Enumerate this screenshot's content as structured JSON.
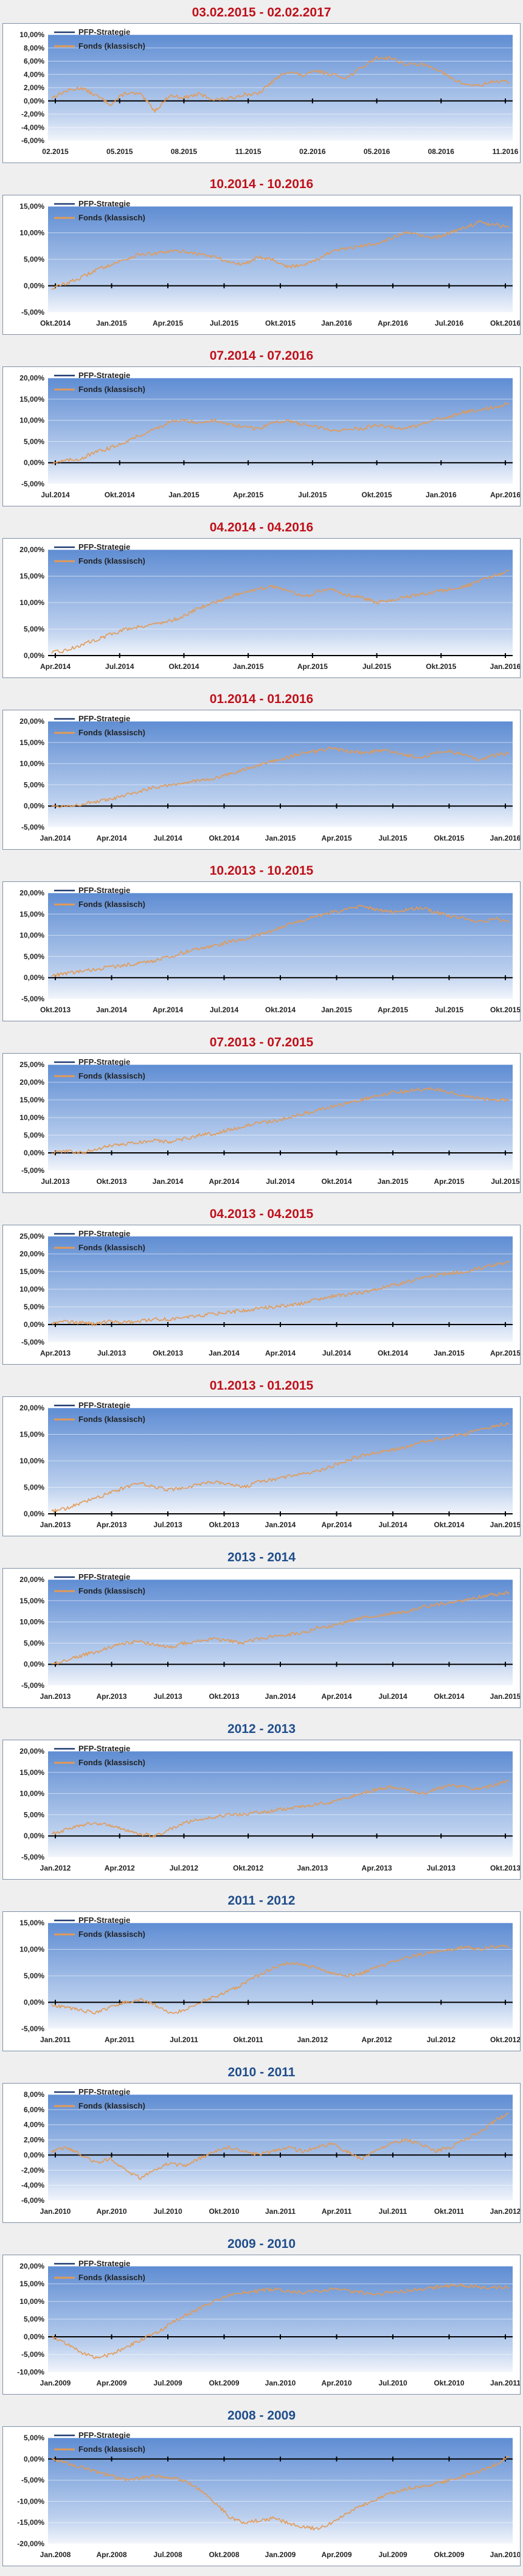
{
  "colors": {
    "title_red": "#c0101a",
    "title_blue": "#1f4e8c",
    "line_series": "#e39a55",
    "legend_strategy": "#1f3b70",
    "plot_top": "#5f8dd3",
    "plot_bottom": "#f2f5fb"
  },
  "chart_data": [
    {
      "type": "line",
      "title": "03.02.2015 - 02.02.2017",
      "title_color": "red",
      "legend": [
        "PFP-Strategie",
        "Fonds (klassisch)"
      ],
      "yticks": [
        "10,00%",
        "8,00%",
        "6,00%",
        "4,00%",
        "2,00%",
        "0,00%",
        "-2,00%",
        "-4,00%",
        "-6,00%"
      ],
      "ylim": [
        -6,
        10
      ],
      "xticks": [
        "02.2015",
        "05.2015",
        "08.2015",
        "11.2015",
        "02.2016",
        "05.2016",
        "08.2016",
        "11.2016"
      ],
      "series": [
        {
          "name": "PFP-Strategie",
          "values": []
        },
        {
          "name": "Fonds (klassisch)",
          "values": [
            0.5,
            1.5,
            2.0,
            0.8,
            -0.5,
            1.2,
            1.0,
            -1.5,
            0.8,
            0.5,
            1.0,
            0.2,
            0.3,
            1.0,
            1.0,
            3.0,
            4.5,
            3.8,
            4.5,
            4.0,
            3.5,
            5.0,
            6.5,
            6.5,
            5.5,
            5.5,
            5.0,
            3.5,
            2.5,
            2.3,
            3.0,
            2.8
          ]
        }
      ]
    },
    {
      "type": "line",
      "title": "10.2014 - 10.2016",
      "title_color": "red",
      "legend": [
        "PFP-Strategie",
        "Fonds (klassisch)"
      ],
      "yticks": [
        "15,00%",
        "10,00%",
        "5,00%",
        "0,00%",
        "-5,00%"
      ],
      "ylim": [
        -5,
        15
      ],
      "xticks": [
        "Okt.2014",
        "Jan.2015",
        "Apr.2015",
        "Jul.2015",
        "Okt.2015",
        "Jan.2016",
        "Apr.2016",
        "Jul.2016",
        "Okt.2016"
      ],
      "series": [
        {
          "name": "PFP-Strategie",
          "values": []
        },
        {
          "name": "Fonds (klassisch)",
          "values": [
            -0.5,
            0.5,
            1.5,
            3.0,
            4.0,
            5.0,
            6.0,
            6.0,
            6.5,
            6.5,
            6.0,
            5.5,
            4.5,
            4.0,
            5.5,
            5.0,
            3.5,
            4.0,
            5.0,
            6.5,
            7.0,
            7.5,
            8.0,
            9.0,
            10.0,
            9.5,
            9.0,
            10.0,
            11.0,
            12.0,
            11.5,
            11.0
          ]
        }
      ]
    },
    {
      "type": "line",
      "title": "07.2014 - 07.2016",
      "title_color": "red",
      "legend": [
        "PFP-Strategie",
        "Fonds (klassisch)"
      ],
      "yticks": [
        "20,00%",
        "15,00%",
        "10,00%",
        "5,00%",
        "0,00%",
        "-5,00%"
      ],
      "ylim": [
        -5,
        20
      ],
      "xticks": [
        "Jul.2014",
        "Okt.2014",
        "Jan.2015",
        "Apr.2015",
        "Jul.2015",
        "Okt.2015",
        "Jan.2016",
        "Apr.2016"
      ],
      "series": [
        {
          "name": "PFP-Strategie",
          "values": []
        },
        {
          "name": "Fonds (klassisch)",
          "values": [
            0.0,
            0.5,
            1.0,
            2.5,
            3.5,
            5.0,
            6.5,
            8.0,
            9.5,
            10.0,
            9.5,
            10.0,
            9.0,
            8.5,
            8.0,
            9.5,
            10.0,
            9.0,
            8.5,
            7.5,
            8.0,
            8.0,
            9.0,
            8.5,
            8.0,
            9.0,
            10.0,
            11.0,
            12.0,
            12.5,
            13.0,
            14.0
          ]
        }
      ]
    },
    {
      "type": "line",
      "title": "04.2014 - 04.2016",
      "title_color": "red",
      "legend": [
        "PFP-Strategie",
        "Fonds (klassisch)"
      ],
      "yticks": [
        "20,00%",
        "15,00%",
        "10,00%",
        "5,00%",
        "0,00%"
      ],
      "ylim": [
        0,
        20
      ],
      "xticks": [
        "Apr.2014",
        "Jul.2014",
        "Okt.2014",
        "Jan.2015",
        "Apr.2015",
        "Jul.2015",
        "Okt.2015",
        "Jan.2016"
      ],
      "series": [
        {
          "name": "PFP-Strategie",
          "values": []
        },
        {
          "name": "Fonds (klassisch)",
          "values": [
            0.5,
            1.0,
            2.0,
            3.0,
            4.0,
            5.0,
            5.5,
            6.0,
            6.5,
            7.5,
            9.0,
            10.0,
            11.0,
            12.0,
            12.5,
            13.0,
            12.5,
            11.0,
            12.0,
            12.5,
            11.5,
            11.0,
            10.0,
            10.5,
            11.0,
            11.5,
            12.0,
            12.5,
            13.0,
            14.0,
            15.0,
            16.0
          ]
        }
      ]
    },
    {
      "type": "line",
      "title": "01.2014 - 01.2016",
      "title_color": "red",
      "legend": [
        "PFP-Strategie",
        "Fonds (klassisch)"
      ],
      "yticks": [
        "20,00%",
        "15,00%",
        "10,00%",
        "5,00%",
        "0,00%",
        "-5,00%"
      ],
      "ylim": [
        -5,
        20
      ],
      "xticks": [
        "Jan.2014",
        "Apr.2014",
        "Jul.2014",
        "Okt.2014",
        "Jan.2015",
        "Apr.2015",
        "Jul.2015",
        "Okt.2015",
        "Jan.2016"
      ],
      "series": [
        {
          "name": "PFP-Strategie",
          "values": []
        },
        {
          "name": "Fonds (klassisch)",
          "values": [
            0.0,
            0.0,
            0.5,
            1.0,
            1.5,
            2.5,
            3.5,
            4.5,
            5.0,
            5.5,
            6.0,
            6.5,
            7.5,
            8.5,
            9.5,
            10.5,
            11.5,
            12.5,
            13.0,
            13.5,
            13.0,
            12.5,
            13.0,
            13.0,
            12.0,
            11.5,
            12.5,
            13.0,
            12.0,
            11.0,
            12.0,
            12.5
          ]
        }
      ]
    },
    {
      "type": "line",
      "title": "10.2013 - 10.2015",
      "title_color": "red",
      "legend": [
        "PFP-Strategie",
        "Fonds (klassisch)"
      ],
      "yticks": [
        "20,00%",
        "15,00%",
        "10,00%",
        "5,00%",
        "0,00%",
        "-5,00%"
      ],
      "ylim": [
        -5,
        20
      ],
      "xticks": [
        "Okt.2013",
        "Jan.2014",
        "Apr.2014",
        "Jul.2014",
        "Okt.2014",
        "Jan.2015",
        "Apr.2015",
        "Jul.2015",
        "Okt.2015"
      ],
      "series": [
        {
          "name": "PFP-Strategie",
          "values": []
        },
        {
          "name": "Fonds (klassisch)",
          "values": [
            0.5,
            1.0,
            1.5,
            2.0,
            2.5,
            3.0,
            3.5,
            4.0,
            5.0,
            6.0,
            7.0,
            7.5,
            8.5,
            9.0,
            10.0,
            11.0,
            12.5,
            13.5,
            14.5,
            15.5,
            16.0,
            17.0,
            16.0,
            15.5,
            16.0,
            16.5,
            15.5,
            14.5,
            14.0,
            13.0,
            14.0,
            13.0
          ]
        }
      ]
    },
    {
      "type": "line",
      "title": "07.2013 - 07.2015",
      "title_color": "red",
      "legend": [
        "PFP-Strategie",
        "Fonds (klassisch)"
      ],
      "yticks": [
        "25,00%",
        "20,00%",
        "15,00%",
        "10,00%",
        "5,00%",
        "0,00%",
        "-5,00%"
      ],
      "ylim": [
        -5,
        25
      ],
      "xticks": [
        "Jul.2013",
        "Okt.2013",
        "Jan.2014",
        "Apr.2014",
        "Jul.2014",
        "Okt.2014",
        "Jan.2015",
        "Apr.2015",
        "Jul.2015"
      ],
      "series": [
        {
          "name": "PFP-Strategie",
          "values": []
        },
        {
          "name": "Fonds (klassisch)",
          "values": [
            0.0,
            0.5,
            0.0,
            1.0,
            2.0,
            2.5,
            3.0,
            3.5,
            3.0,
            4.0,
            5.0,
            5.5,
            6.5,
            7.5,
            8.5,
            9.0,
            10.0,
            11.0,
            12.0,
            13.0,
            14.0,
            15.0,
            16.0,
            17.0,
            17.5,
            18.0,
            18.0,
            17.0,
            16.0,
            15.5,
            15.0,
            15.0
          ]
        }
      ]
    },
    {
      "type": "line",
      "title": "04.2013 - 04.2015",
      "title_color": "red",
      "legend": [
        "PFP-Strategie",
        "Fonds (klassisch)"
      ],
      "yticks": [
        "25,00%",
        "20,00%",
        "15,00%",
        "10,00%",
        "5,00%",
        "0,00%",
        "-5,00%"
      ],
      "ylim": [
        -5,
        25
      ],
      "xticks": [
        "Apr.2013",
        "Jul.2013",
        "Okt.2013",
        "Jan.2014",
        "Apr.2014",
        "Jul.2014",
        "Okt.2014",
        "Jan.2015",
        "Apr.2015"
      ],
      "series": [
        {
          "name": "PFP-Strategie",
          "values": []
        },
        {
          "name": "Fonds (klassisch)",
          "values": [
            0.5,
            1.0,
            0.5,
            0.0,
            1.0,
            0.5,
            1.0,
            1.5,
            1.5,
            2.0,
            2.5,
            3.0,
            3.5,
            4.0,
            4.5,
            5.0,
            5.5,
            6.0,
            7.0,
            8.0,
            8.5,
            9.0,
            10.0,
            11.0,
            12.0,
            13.0,
            14.0,
            14.5,
            15.0,
            16.0,
            17.0,
            17.5
          ]
        }
      ]
    },
    {
      "type": "line",
      "title": "01.2013 - 01.2015",
      "title_color": "red",
      "legend": [
        "PFP-Strategie",
        "Fonds (klassisch)"
      ],
      "yticks": [
        "20,00%",
        "15,00%",
        "10,00%",
        "5,00%",
        "0,00%"
      ],
      "ylim": [
        0,
        20
      ],
      "xticks": [
        "Jan.2013",
        "Apr.2013",
        "Jul.2013",
        "Okt.2013",
        "Jan.2014",
        "Apr.2014",
        "Jul.2014",
        "Okt.2014",
        "Jan.2015"
      ],
      "series": [
        {
          "name": "PFP-Strategie",
          "values": []
        },
        {
          "name": "Fonds (klassisch)",
          "values": [
            0.5,
            1.0,
            2.0,
            3.0,
            4.0,
            5.0,
            6.0,
            5.0,
            4.5,
            5.0,
            5.5,
            6.0,
            5.5,
            5.0,
            6.0,
            6.5,
            7.0,
            7.5,
            8.0,
            9.0,
            10.0,
            11.0,
            11.5,
            12.0,
            12.5,
            13.5,
            14.0,
            14.5,
            15.0,
            16.0,
            16.5,
            17.0
          ]
        }
      ]
    },
    {
      "type": "line",
      "title": "2013 - 2014",
      "title_color": "blue",
      "legend": [
        "PFP-Strategie",
        "Fonds (klassisch)"
      ],
      "yticks": [
        "20,00%",
        "15,00%",
        "10,00%",
        "5,00%",
        "0,00%",
        "-5,00%"
      ],
      "ylim": [
        -5,
        20
      ],
      "xticks": [
        "Jan.2013",
        "Apr.2013",
        "Jul.2013",
        "Okt.2013",
        "Jan.2014",
        "Apr.2014",
        "Jul.2014",
        "Okt.2014",
        "Jan.2015"
      ],
      "series": [
        {
          "name": "PFP-Strategie",
          "values": []
        },
        {
          "name": "Fonds (klassisch)",
          "values": [
            0.0,
            1.0,
            2.0,
            3.0,
            4.0,
            5.0,
            5.5,
            4.5,
            4.0,
            5.0,
            5.5,
            6.0,
            5.5,
            5.0,
            6.0,
            6.5,
            7.0,
            7.5,
            8.5,
            9.0,
            10.0,
            11.0,
            11.5,
            12.0,
            12.5,
            13.5,
            14.0,
            14.5,
            15.0,
            16.0,
            16.5,
            17.0
          ]
        }
      ]
    },
    {
      "type": "line",
      "title": "2012 - 2013",
      "title_color": "blue",
      "legend": [
        "PFP-Strategie",
        "Fonds (klassisch)"
      ],
      "yticks": [
        "20,00%",
        "15,00%",
        "10,00%",
        "5,00%",
        "0,00%",
        "-5,00%"
      ],
      "ylim": [
        -5,
        20
      ],
      "xticks": [
        "Jan.2012",
        "Apr.2012",
        "Jul.2012",
        "Okt.2012",
        "Jan.2013",
        "Apr.2013",
        "Jul.2013",
        "Okt.2013"
      ],
      "series": [
        {
          "name": "PFP-Strategie",
          "values": []
        },
        {
          "name": "Fonds (klassisch)",
          "values": [
            0.5,
            1.5,
            2.5,
            3.0,
            2.5,
            1.5,
            0.5,
            0.0,
            1.5,
            3.0,
            4.0,
            4.5,
            5.0,
            5.0,
            5.5,
            6.0,
            6.5,
            7.0,
            7.5,
            8.0,
            9.0,
            10.0,
            11.0,
            11.5,
            11.0,
            10.0,
            11.0,
            12.0,
            11.5,
            11.0,
            12.0,
            13.0
          ]
        }
      ]
    },
    {
      "type": "line",
      "title": "2011 - 2012",
      "title_color": "blue",
      "legend": [
        "PFP-Strategie",
        "Fonds (klassisch)"
      ],
      "yticks": [
        "15,00%",
        "10,00%",
        "5,00%",
        "0,00%",
        "-5,00%"
      ],
      "ylim": [
        -5,
        15
      ],
      "xticks": [
        "Jan.2011",
        "Apr.2011",
        "Jul.2011",
        "Okt.2011",
        "Jan.2012",
        "Apr.2012",
        "Jul.2012",
        "Okt.2012"
      ],
      "series": [
        {
          "name": "PFP-Strategie",
          "values": []
        },
        {
          "name": "Fonds (klassisch)",
          "values": [
            -0.5,
            -1.0,
            -1.5,
            -2.0,
            -1.0,
            0.0,
            0.5,
            -0.5,
            -2.0,
            -1.5,
            0.0,
            1.0,
            2.0,
            3.5,
            5.0,
            6.5,
            7.5,
            7.0,
            6.5,
            5.5,
            5.0,
            5.5,
            6.5,
            7.5,
            8.5,
            9.0,
            9.5,
            10.0,
            10.5,
            10.0,
            10.5,
            10.5
          ]
        }
      ]
    },
    {
      "type": "line",
      "title": "2010 - 2011",
      "title_color": "blue",
      "legend": [
        "PFP-Strategie",
        "Fonds (klassisch)"
      ],
      "yticks": [
        "8,00%",
        "6,00%",
        "4,00%",
        "2,00%",
        "0,00%",
        "-2,00%",
        "-4,00%",
        "-6,00%"
      ],
      "ylim": [
        -6,
        8
      ],
      "xticks": [
        "Jan.2010",
        "Apr.2010",
        "Jul.2010",
        "Okt.2010",
        "Jan.2011",
        "Apr.2011",
        "Jul.2011",
        "Okt.2011",
        "Jan.2012"
      ],
      "series": [
        {
          "name": "PFP-Strategie",
          "values": []
        },
        {
          "name": "Fonds (klassisch)",
          "values": [
            0.5,
            1.0,
            0.0,
            -1.0,
            -0.5,
            -2.0,
            -3.0,
            -2.0,
            -1.0,
            -1.5,
            -0.5,
            0.5,
            1.0,
            0.5,
            0.0,
            0.5,
            1.0,
            0.5,
            1.0,
            1.5,
            0.5,
            -0.5,
            0.5,
            1.5,
            2.0,
            1.5,
            0.5,
            1.0,
            2.0,
            3.0,
            4.5,
            5.5
          ]
        }
      ]
    },
    {
      "type": "line",
      "title": "2009 - 2010",
      "title_color": "blue",
      "legend": [
        "PFP-Strategie",
        "Fonds (klassisch)"
      ],
      "yticks": [
        "20,00%",
        "15,00%",
        "10,00%",
        "5,00%",
        "0,00%",
        "-5,00%",
        "-10,00%"
      ],
      "ylim": [
        -10,
        20
      ],
      "xticks": [
        "Jan.2009",
        "Apr.2009",
        "Jul.2009",
        "Okt.2009",
        "Jan.2010",
        "Apr.2010",
        "Jul.2010",
        "Okt.2010",
        "Jan.2011"
      ],
      "series": [
        {
          "name": "PFP-Strategie",
          "values": []
        },
        {
          "name": "Fonds (klassisch)",
          "values": [
            0.0,
            -2.0,
            -4.5,
            -6.0,
            -5.0,
            -3.0,
            -1.0,
            1.0,
            3.5,
            6.0,
            8.0,
            10.0,
            11.5,
            12.5,
            13.0,
            13.5,
            13.0,
            12.5,
            13.0,
            13.5,
            13.0,
            12.5,
            12.0,
            12.5,
            13.0,
            13.5,
            14.0,
            14.5,
            14.5,
            14.0,
            14.0,
            14.0
          ]
        }
      ]
    },
    {
      "type": "line",
      "title": "2008 - 2009",
      "title_color": "blue",
      "legend": [
        "PFP-Strategie",
        "Fonds (klassisch)"
      ],
      "yticks": [
        "5,00%",
        "0,00%",
        "-5,00%",
        "-10,00%",
        "-15,00%",
        "-20,00%"
      ],
      "ylim": [
        -20,
        5
      ],
      "xticks": [
        "Jan.2008",
        "Apr.2008",
        "Jul.2008",
        "Okt.2008",
        "Jan.2009",
        "Apr.2009",
        "Jul.2009",
        "Okt.2009",
        "Jan.2010"
      ],
      "series": [
        {
          "name": "PFP-Strategie",
          "values": []
        },
        {
          "name": "Fonds (klassisch)",
          "values": [
            0.0,
            -1.0,
            -2.0,
            -3.0,
            -4.0,
            -5.0,
            -4.5,
            -4.0,
            -4.5,
            -5.0,
            -7.0,
            -10.0,
            -13.5,
            -15.0,
            -14.5,
            -14.0,
            -15.0,
            -16.0,
            -16.5,
            -15.0,
            -13.0,
            -11.0,
            -9.5,
            -8.0,
            -7.0,
            -6.5,
            -6.0,
            -5.0,
            -4.0,
            -3.0,
            -1.5,
            0.5
          ]
        }
      ]
    }
  ]
}
